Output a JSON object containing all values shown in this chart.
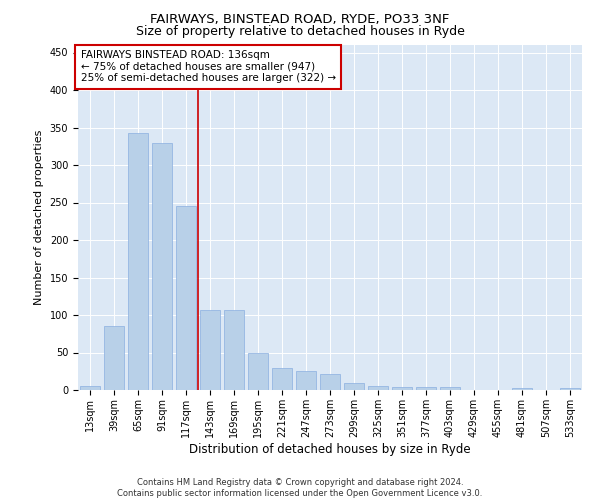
{
  "title1": "FAIRWAYS, BINSTEAD ROAD, RYDE, PO33 3NF",
  "title2": "Size of property relative to detached houses in Ryde",
  "xlabel": "Distribution of detached houses by size in Ryde",
  "ylabel": "Number of detached properties",
  "bar_labels": [
    "13sqm",
    "39sqm",
    "65sqm",
    "91sqm",
    "117sqm",
    "143sqm",
    "169sqm",
    "195sqm",
    "221sqm",
    "247sqm",
    "273sqm",
    "299sqm",
    "325sqm",
    "351sqm",
    "377sqm",
    "403sqm",
    "429sqm",
    "455sqm",
    "481sqm",
    "507sqm",
    "533sqm"
  ],
  "bar_values": [
    5,
    85,
    343,
    330,
    245,
    107,
    107,
    50,
    30,
    25,
    22,
    10,
    5,
    4,
    4,
    4,
    0,
    0,
    3,
    0,
    3
  ],
  "bar_color": "#b8d0e8",
  "bar_edge_color": "#8aafe0",
  "vline_x": 4.5,
  "vline_color": "#cc0000",
  "annotation_text": "FAIRWAYS BINSTEAD ROAD: 136sqm\n← 75% of detached houses are smaller (947)\n25% of semi-detached houses are larger (322) →",
  "annotation_box_color": "#ffffff",
  "annotation_box_edge_color": "#cc0000",
  "ylim": [
    0,
    460
  ],
  "yticks": [
    0,
    50,
    100,
    150,
    200,
    250,
    300,
    350,
    400,
    450
  ],
  "bg_color": "#dce8f5",
  "title1_fontsize": 9.5,
  "title2_fontsize": 9.0,
  "xlabel_fontsize": 8.5,
  "ylabel_fontsize": 8.0,
  "tick_fontsize": 7.0,
  "annotation_fontsize": 7.5,
  "footer_fontsize": 6.0,
  "footer_text": "Contains HM Land Registry data © Crown copyright and database right 2024.\nContains public sector information licensed under the Open Government Licence v3.0."
}
